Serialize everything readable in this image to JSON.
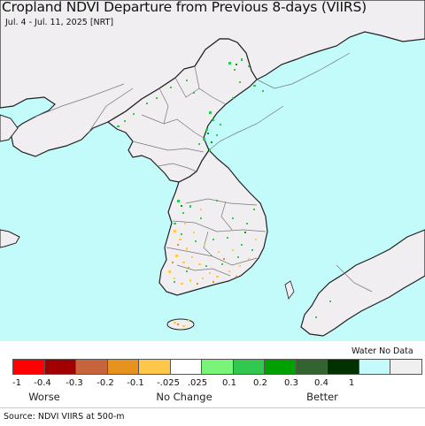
{
  "header": {
    "title": "Cropland NDVI Departure from Previous 8-days (VIIRS)",
    "subtitle": "Jul. 4 - Jul. 11, 2025 [NRT]"
  },
  "map": {
    "sea_color": "#c3fbfb",
    "land_color": "#f0eef0",
    "border_color": "#222222",
    "admin_color": "#777777",
    "regions": [
      "Korean Peninsula",
      "Northeast China",
      "Russian Far East",
      "Japan (Honshu, Kyushu)",
      "Jeju Island"
    ]
  },
  "legend": {
    "water_no_data_label": "Water No Data",
    "swatches": [
      {
        "color": "#ff0000"
      },
      {
        "color": "#a00000"
      },
      {
        "color": "#c8643c"
      },
      {
        "color": "#e8921e"
      },
      {
        "color": "#ffc84b"
      },
      {
        "color": "#ffffff"
      },
      {
        "color": "#78f578"
      },
      {
        "color": "#32c850"
      },
      {
        "color": "#00a000"
      },
      {
        "color": "#326432"
      },
      {
        "color": "#003200"
      },
      {
        "color": "#c3fbfb"
      },
      {
        "color": "#f0eef0"
      }
    ],
    "ticks": [
      "-1",
      "-0.4",
      "-0.3",
      "-0.2",
      "-0.1",
      "-.025",
      ".025",
      "0.1",
      "0.2",
      "0.3",
      "0.4",
      "1"
    ],
    "categories": [
      "Worse",
      "No Change",
      "Better"
    ]
  },
  "footer": {
    "source": "Source: NDVI VIIRS at 500-m"
  }
}
